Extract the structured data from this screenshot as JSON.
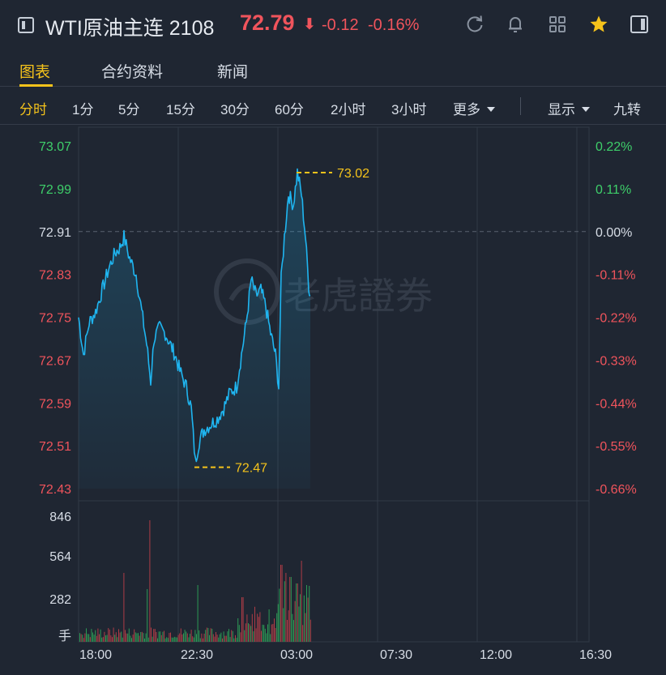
{
  "header": {
    "title": "WTI原油主连 2108",
    "price": "72.79",
    "arrow": "⬇",
    "change": "-0.12",
    "change_pct": "-0.16%"
  },
  "tabs": [
    {
      "label": "图表",
      "active": true
    },
    {
      "label": "合约资料",
      "active": false
    },
    {
      "label": "新闻",
      "active": false
    }
  ],
  "periods": [
    "分时",
    "1分",
    "5分",
    "15分",
    "30分",
    "60分",
    "2小时",
    "3小时"
  ],
  "more_label": "更多",
  "display_label": "显示",
  "nine_turn_label": "九转",
  "watermark": "老虎證券",
  "colors": {
    "up": "#f0545c",
    "down": "#3ecf6a",
    "accent": "#f5c31b",
    "line": "#1fb5f0",
    "neutral": "#d7dde6"
  },
  "chart_data": {
    "type": "line",
    "price_axis_left": [
      "73.07",
      "72.99",
      "72.91",
      "72.83",
      "72.75",
      "72.67",
      "72.59",
      "72.51",
      "72.43"
    ],
    "price_axis_right": [
      "0.22%",
      "0.11%",
      "0.00%",
      "-0.11%",
      "-0.22%",
      "-0.33%",
      "-0.44%",
      "-0.55%",
      "-0.66%"
    ],
    "prev_close": 72.91,
    "ylim": [
      72.43,
      73.07
    ],
    "high_label": "73.02",
    "low_label": "72.47",
    "volume_axis": [
      "846",
      "564",
      "282"
    ],
    "volume_unit": "手",
    "x_ticks": [
      "18:00",
      "22:30",
      "03:00",
      "07:30",
      "12:00",
      "16:30"
    ]
  }
}
